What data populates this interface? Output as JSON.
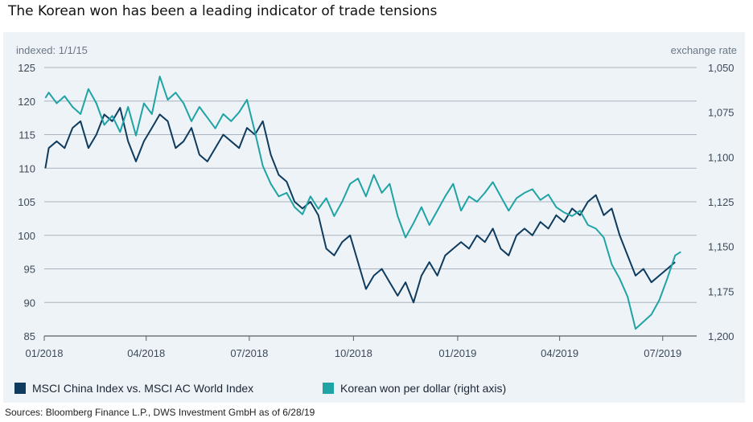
{
  "header": {
    "title": "The Korean won has been a leading indicator of trade tensions"
  },
  "footer": {
    "source": "Sources: Bloomberg Finance L.P., DWS Investment GmbH as of 6/28/19"
  },
  "colors": {
    "msci": "#0e3b5e",
    "won": "#1fa3a5",
    "grid": "#a9b3bd",
    "axis": "#555f69"
  },
  "chart_data": {
    "type": "line",
    "y_left": {
      "title": "indexed: 1/1/15",
      "min": 85,
      "max": 125,
      "ticks": [
        85,
        90,
        95,
        100,
        105,
        110,
        115,
        120,
        125
      ]
    },
    "y_right": {
      "title": "exchange rate",
      "min": 1050,
      "max": 1200,
      "reversed": true,
      "ticks": [
        "1,050",
        "1,075",
        "1,100",
        "1,125",
        "1,150",
        "1,175",
        "1,200"
      ]
    },
    "x_axis": {
      "range": [
        "2018-01-01",
        "2019-07-31"
      ],
      "ticks": [
        "01/2018",
        "04/2018",
        "07/2018",
        "10/2018",
        "01/2019",
        "04/2019",
        "07/2019"
      ]
    },
    "legend": {
      "placement": "bottom-left"
    },
    "series": [
      {
        "name": "MSCI China Index vs. MSCI AC World Index",
        "axis": "left",
        "points": [
          [
            "2018-01-02",
            110
          ],
          [
            "2018-01-05",
            113
          ],
          [
            "2018-01-12",
            114
          ],
          [
            "2018-01-19",
            113
          ],
          [
            "2018-01-26",
            116
          ],
          [
            "2018-02-02",
            117
          ],
          [
            "2018-02-09",
            113
          ],
          [
            "2018-02-16",
            115
          ],
          [
            "2018-02-23",
            118
          ],
          [
            "2018-03-02",
            117
          ],
          [
            "2018-03-09",
            119
          ],
          [
            "2018-03-16",
            114
          ],
          [
            "2018-03-23",
            111
          ],
          [
            "2018-03-30",
            114
          ],
          [
            "2018-04-06",
            116
          ],
          [
            "2018-04-13",
            118
          ],
          [
            "2018-04-20",
            117
          ],
          [
            "2018-04-27",
            113
          ],
          [
            "2018-05-04",
            114
          ],
          [
            "2018-05-11",
            116
          ],
          [
            "2018-05-18",
            112
          ],
          [
            "2018-05-25",
            111
          ],
          [
            "2018-06-01",
            113
          ],
          [
            "2018-06-08",
            115
          ],
          [
            "2018-06-15",
            114
          ],
          [
            "2018-06-22",
            113
          ],
          [
            "2018-06-29",
            116
          ],
          [
            "2018-07-06",
            115
          ],
          [
            "2018-07-13",
            117
          ],
          [
            "2018-07-20",
            112
          ],
          [
            "2018-07-27",
            109
          ],
          [
            "2018-08-03",
            108
          ],
          [
            "2018-08-10",
            105
          ],
          [
            "2018-08-17",
            104
          ],
          [
            "2018-08-24",
            105
          ],
          [
            "2018-08-31",
            103
          ],
          [
            "2018-09-07",
            98
          ],
          [
            "2018-09-14",
            97
          ],
          [
            "2018-09-21",
            99
          ],
          [
            "2018-09-28",
            100
          ],
          [
            "2018-10-05",
            96
          ],
          [
            "2018-10-12",
            92
          ],
          [
            "2018-10-19",
            94
          ],
          [
            "2018-10-26",
            95
          ],
          [
            "2018-11-02",
            93
          ],
          [
            "2018-11-09",
            91
          ],
          [
            "2018-11-16",
            93
          ],
          [
            "2018-11-23",
            90
          ],
          [
            "2018-11-30",
            94
          ],
          [
            "2018-12-07",
            96
          ],
          [
            "2018-12-14",
            94
          ],
          [
            "2018-12-21",
            97
          ],
          [
            "2018-12-28",
            98
          ],
          [
            "2019-01-04",
            99
          ],
          [
            "2019-01-11",
            98
          ],
          [
            "2019-01-18",
            100
          ],
          [
            "2019-01-25",
            99
          ],
          [
            "2019-02-01",
            101
          ],
          [
            "2019-02-08",
            98
          ],
          [
            "2019-02-15",
            97
          ],
          [
            "2019-02-22",
            100
          ],
          [
            "2019-03-01",
            101
          ],
          [
            "2019-03-08",
            100
          ],
          [
            "2019-03-15",
            102
          ],
          [
            "2019-03-22",
            101
          ],
          [
            "2019-03-29",
            103
          ],
          [
            "2019-04-05",
            102
          ],
          [
            "2019-04-12",
            104
          ],
          [
            "2019-04-19",
            103
          ],
          [
            "2019-04-26",
            105
          ],
          [
            "2019-05-03",
            106
          ],
          [
            "2019-05-10",
            103
          ],
          [
            "2019-05-17",
            104
          ],
          [
            "2019-05-24",
            100
          ],
          [
            "2019-05-31",
            97
          ],
          [
            "2019-06-07",
            94
          ],
          [
            "2019-06-14",
            95
          ],
          [
            "2019-06-21",
            93
          ],
          [
            "2019-06-28",
            94
          ],
          [
            "2019-07-05",
            95
          ],
          [
            "2019-07-12",
            96
          ]
        ]
      },
      {
        "name": "Korean won per dollar (right axis)",
        "axis": "right",
        "points": [
          [
            "2018-01-02",
            1067
          ],
          [
            "2018-01-05",
            1064
          ],
          [
            "2018-01-12",
            1070
          ],
          [
            "2018-01-19",
            1066
          ],
          [
            "2018-01-26",
            1072
          ],
          [
            "2018-02-02",
            1076
          ],
          [
            "2018-02-09",
            1062
          ],
          [
            "2018-02-16",
            1070
          ],
          [
            "2018-02-23",
            1082
          ],
          [
            "2018-03-02",
            1077
          ],
          [
            "2018-03-09",
            1086
          ],
          [
            "2018-03-16",
            1072
          ],
          [
            "2018-03-23",
            1088
          ],
          [
            "2018-03-30",
            1070
          ],
          [
            "2018-04-06",
            1076
          ],
          [
            "2018-04-13",
            1055
          ],
          [
            "2018-04-20",
            1068
          ],
          [
            "2018-04-27",
            1064
          ],
          [
            "2018-05-04",
            1070
          ],
          [
            "2018-05-11",
            1080
          ],
          [
            "2018-05-18",
            1072
          ],
          [
            "2018-05-25",
            1078
          ],
          [
            "2018-06-01",
            1084
          ],
          [
            "2018-06-08",
            1076
          ],
          [
            "2018-06-15",
            1080
          ],
          [
            "2018-06-22",
            1075
          ],
          [
            "2018-06-29",
            1068
          ],
          [
            "2018-07-06",
            1086
          ],
          [
            "2018-07-13",
            1105
          ],
          [
            "2018-07-20",
            1115
          ],
          [
            "2018-07-27",
            1122
          ],
          [
            "2018-08-03",
            1120
          ],
          [
            "2018-08-10",
            1128
          ],
          [
            "2018-08-17",
            1132
          ],
          [
            "2018-08-24",
            1122
          ],
          [
            "2018-08-31",
            1129
          ],
          [
            "2018-09-07",
            1123
          ],
          [
            "2018-09-14",
            1133
          ],
          [
            "2018-09-21",
            1125
          ],
          [
            "2018-09-28",
            1115
          ],
          [
            "2018-10-05",
            1112
          ],
          [
            "2018-10-12",
            1122
          ],
          [
            "2018-10-19",
            1110
          ],
          [
            "2018-10-26",
            1120
          ],
          [
            "2018-11-02",
            1115
          ],
          [
            "2018-11-09",
            1133
          ],
          [
            "2018-11-16",
            1145
          ],
          [
            "2018-11-23",
            1137
          ],
          [
            "2018-11-30",
            1128
          ],
          [
            "2018-12-07",
            1138
          ],
          [
            "2018-12-14",
            1130
          ],
          [
            "2018-12-21",
            1122
          ],
          [
            "2018-12-28",
            1115
          ],
          [
            "2019-01-04",
            1130
          ],
          [
            "2019-01-11",
            1122
          ],
          [
            "2019-01-18",
            1125
          ],
          [
            "2019-01-25",
            1120
          ],
          [
            "2019-02-01",
            1114
          ],
          [
            "2019-02-08",
            1122
          ],
          [
            "2019-02-15",
            1130
          ],
          [
            "2019-02-22",
            1123
          ],
          [
            "2019-03-01",
            1120
          ],
          [
            "2019-03-08",
            1118
          ],
          [
            "2019-03-15",
            1124
          ],
          [
            "2019-03-22",
            1121
          ],
          [
            "2019-03-29",
            1128
          ],
          [
            "2019-04-05",
            1131
          ],
          [
            "2019-04-12",
            1133
          ],
          [
            "2019-04-19",
            1130
          ],
          [
            "2019-04-26",
            1138
          ],
          [
            "2019-05-03",
            1140
          ],
          [
            "2019-05-10",
            1145
          ],
          [
            "2019-05-17",
            1160
          ],
          [
            "2019-05-24",
            1168
          ],
          [
            "2019-05-31",
            1178
          ],
          [
            "2019-06-07",
            1196
          ],
          [
            "2019-06-14",
            1192
          ],
          [
            "2019-06-21",
            1188
          ],
          [
            "2019-06-28",
            1180
          ],
          [
            "2019-07-05",
            1168
          ],
          [
            "2019-07-12",
            1155
          ],
          [
            "2019-07-17",
            1153
          ]
        ]
      }
    ]
  }
}
